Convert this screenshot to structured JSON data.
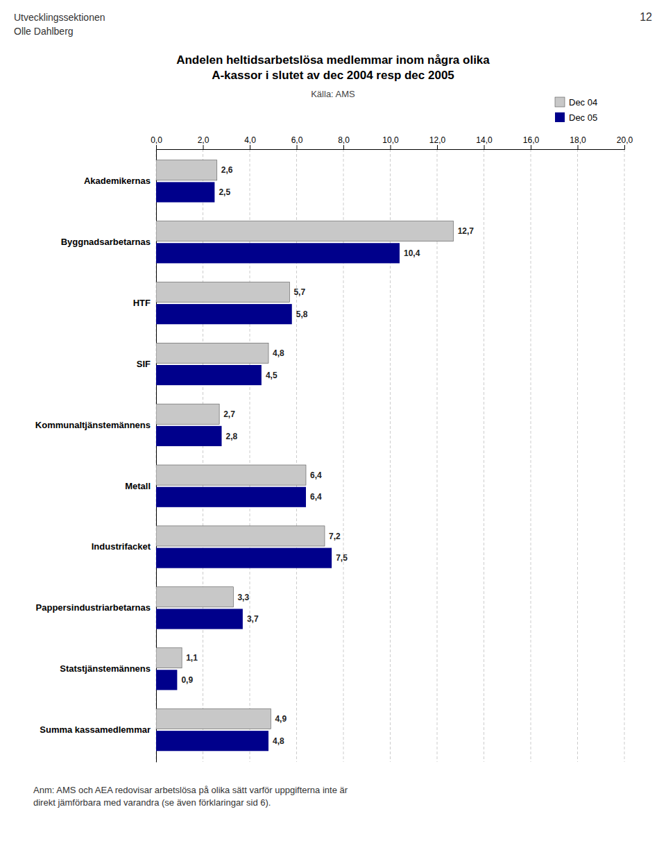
{
  "chart_data": {
    "type": "bar",
    "orientation": "horizontal",
    "title": "Andelen heltidsarbetslösa medlemmar inom några olika\nA-kassor i slutet av dec 2004 resp dec 2005",
    "subtitle": "Källa: AMS",
    "annotations": [
      "Utvecklingssektionen",
      "Olle Dahlberg",
      "12",
      "Anm: AMS och AEA redovisar arbetslösa på olika sätt varför uppgifterna inte är\ndirekt jämförbara med varandra (se även förklaringar sid 6)."
    ],
    "categories": [
      "Akademikernas",
      "Byggnadsarbetarnas",
      "HTF",
      "SIF",
      "Kommunaltjänstemännens",
      "Metall",
      "Industrifacket",
      "Pappersindustriarbetarnas",
      "Statstjänstemännens",
      "Summa kassamedlemmar"
    ],
    "series": [
      {
        "name": "Dec 04",
        "color": "#c8c8c8",
        "values": [
          2.6,
          12.7,
          5.7,
          4.8,
          2.7,
          6.4,
          7.2,
          3.3,
          1.1,
          4.9
        ],
        "value_labels": [
          "2,6",
          "12,7",
          "5,7",
          "4,8",
          "2,7",
          "6,4",
          "7,2",
          "3,3",
          "1,1",
          "4,9"
        ]
      },
      {
        "name": "Dec 05",
        "color": "#00008B",
        "values": [
          2.5,
          10.4,
          5.8,
          4.5,
          2.8,
          6.4,
          7.5,
          3.7,
          0.9,
          4.8
        ],
        "value_labels": [
          "2,5",
          "10,4",
          "5,8",
          "4,5",
          "2,8",
          "6,4",
          "7,5",
          "3,7",
          "0,9",
          "4,8"
        ]
      }
    ],
    "xlim": [
      0,
      20
    ],
    "xticks": [
      {
        "value": 0.0,
        "label": "0,0"
      },
      {
        "value": 2.0,
        "label": "2,0"
      },
      {
        "value": 4.0,
        "label": "4,0"
      },
      {
        "value": 6.0,
        "label": "6,0"
      },
      {
        "value": 8.0,
        "label": "8,0"
      },
      {
        "value": 10.0,
        "label": "10,0"
      },
      {
        "value": 12.0,
        "label": "12,0"
      },
      {
        "value": 14.0,
        "label": "14,0"
      },
      {
        "value": 16.0,
        "label": "16,0"
      },
      {
        "value": 18.0,
        "label": "18,0"
      },
      {
        "value": 20.0,
        "label": "20,0"
      }
    ],
    "grid": true,
    "legend": "upper right",
    "data_labels": true
  }
}
